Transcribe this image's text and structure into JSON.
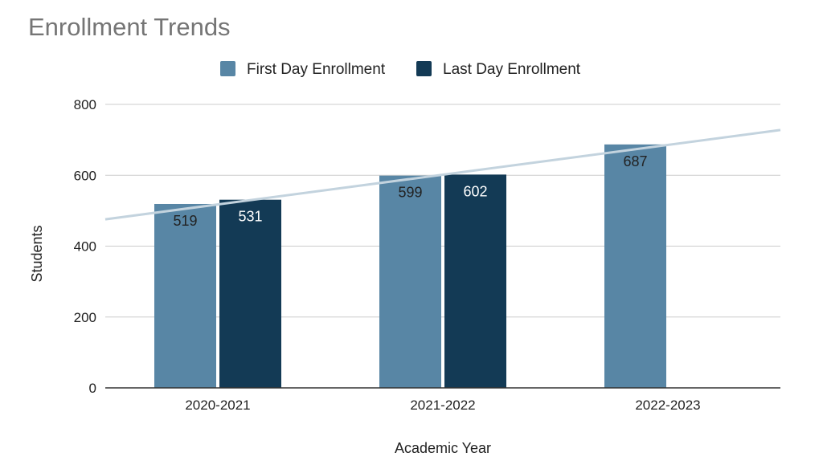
{
  "chart_data": {
    "type": "bar",
    "title": "Enrollment Trends",
    "xlabel": "Academic Year",
    "ylabel": "Students",
    "categories": [
      "2020-2021",
      "2021-2022",
      "2022-2023"
    ],
    "series": [
      {
        "name": "First Day Enrollment",
        "values": [
          519,
          599,
          687
        ],
        "color": "#5886a5"
      },
      {
        "name": "Last Day Enrollment",
        "values": [
          531,
          602,
          null
        ],
        "color": "#133a55"
      }
    ],
    "data_label_colors": [
      "#222222",
      "#ffffff"
    ],
    "ylim": [
      0,
      800
    ],
    "yticks": [
      0,
      200,
      400,
      600,
      800
    ],
    "ytick_labels": [
      "0",
      "200",
      "400",
      "600",
      "800"
    ],
    "grid": true,
    "legend_position": "top-center",
    "trendline": {
      "series": "First Day Enrollment",
      "type": "linear",
      "color": "#c3d3de"
    }
  }
}
